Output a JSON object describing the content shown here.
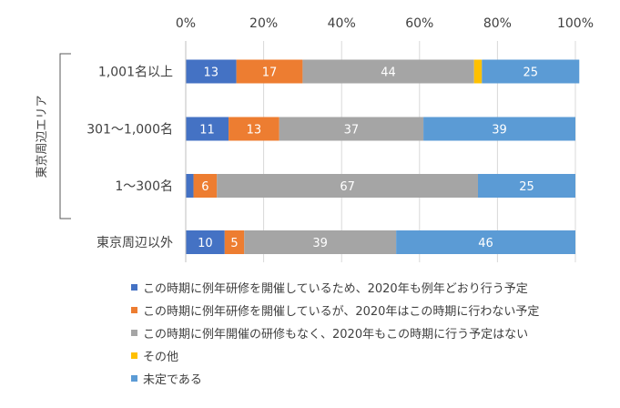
{
  "chart_data": {
    "type": "bar",
    "orientation": "horizontal",
    "stacked": "percent",
    "xlim": [
      0,
      100
    ],
    "xticks": [
      "0%",
      "20%",
      "40%",
      "60%",
      "80%",
      "100%"
    ],
    "categories": [
      "1,001名以上",
      "301～1,000名",
      "1～300名",
      "東京周辺以外"
    ],
    "group_label": "東京周辺エリア",
    "series": [
      {
        "name": "この時期に例年研修を開催しているため、2020年も例年どおり行う予定",
        "color": "#4472C4",
        "values": [
          13,
          11,
          2,
          10
        ],
        "labels": [
          "13",
          "11",
          "",
          "10"
        ]
      },
      {
        "name": "この時期に例年研修を開催しているが、2020年はこの時期に行わない予定",
        "color": "#ED7D31",
        "values": [
          17,
          13,
          6,
          5
        ],
        "labels": [
          "17",
          "13",
          "6",
          "5"
        ]
      },
      {
        "name": "この時期に例年開催の研修もなく、2020年もこの時期に行う予定はない",
        "color": "#A5A5A5",
        "values": [
          44,
          37,
          67,
          39
        ],
        "labels": [
          "44",
          "37",
          "67",
          "39"
        ]
      },
      {
        "name": "その他",
        "color": "#FFC000",
        "values": [
          2,
          0,
          0,
          0
        ],
        "labels": [
          "",
          "",
          "",
          ""
        ]
      },
      {
        "name": "未定である",
        "color": "#5B9BD5",
        "values": [
          25,
          39,
          25,
          46
        ],
        "labels": [
          "25",
          "39",
          "25",
          "46"
        ]
      }
    ],
    "grid": true,
    "legend_position": "bottom"
  }
}
